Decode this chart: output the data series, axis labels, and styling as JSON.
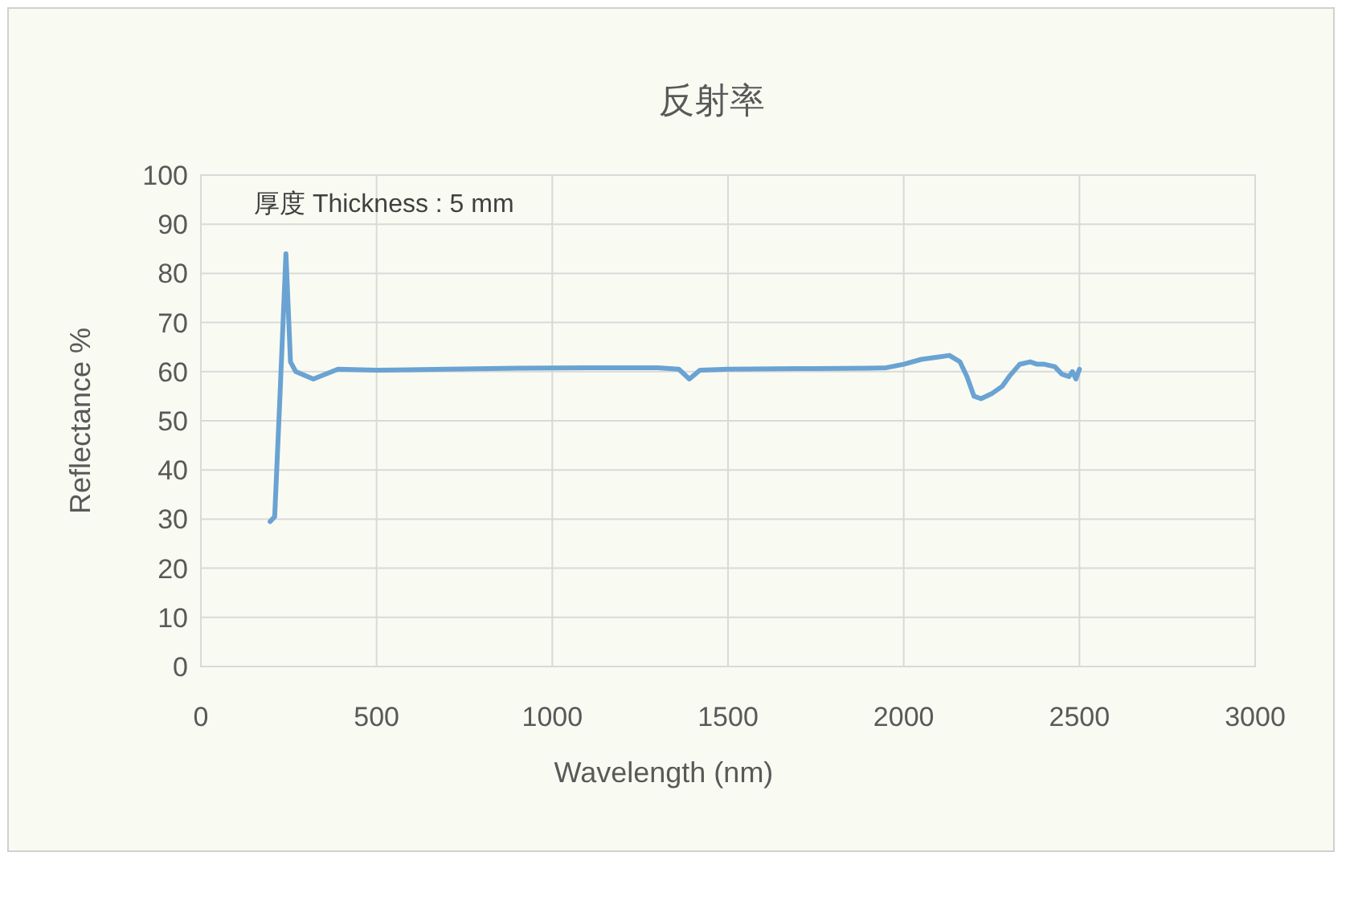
{
  "chart_data": {
    "type": "line",
    "title": "反射率",
    "xlabel": "Wavelength (nm)",
    "ylabel": "Reflectance %",
    "annotations": [
      "厚度 Thickness : 5 mm"
    ],
    "series": [
      {
        "color": "#6aa3d3",
        "x": [
          197,
          210,
          225,
          242,
          255,
          270,
          320,
          390,
          500,
          700,
          900,
          1100,
          1300,
          1360,
          1390,
          1420,
          1500,
          1700,
          1900,
          1950,
          2000,
          2050,
          2100,
          2130,
          2160,
          2180,
          2200,
          2220,
          2250,
          2280,
          2300,
          2330,
          2360,
          2380,
          2400,
          2430,
          2450,
          2470,
          2480,
          2490,
          2500
        ],
        "values": [
          29.5,
          30.5,
          55,
          84,
          62,
          60,
          58.5,
          60.5,
          60.3,
          60.5,
          60.7,
          60.8,
          60.8,
          60.5,
          58.5,
          60.3,
          60.5,
          60.6,
          60.7,
          60.8,
          61.5,
          62.5,
          63,
          63.3,
          62,
          59,
          55,
          54.5,
          55.5,
          57,
          59,
          61.5,
          62,
          61.5,
          61.5,
          61,
          59.5,
          59,
          60,
          58.5,
          60.5
        ]
      }
    ],
    "xlim": [
      0,
      3000
    ],
    "xticks": [
      0,
      500,
      1000,
      1500,
      2000,
      2500,
      3000
    ],
    "ylim": [
      0,
      100
    ],
    "yticks": [
      0,
      10,
      20,
      30,
      40,
      50,
      60,
      70,
      80,
      90,
      100
    ],
    "grid": true,
    "line_style": "solid"
  }
}
